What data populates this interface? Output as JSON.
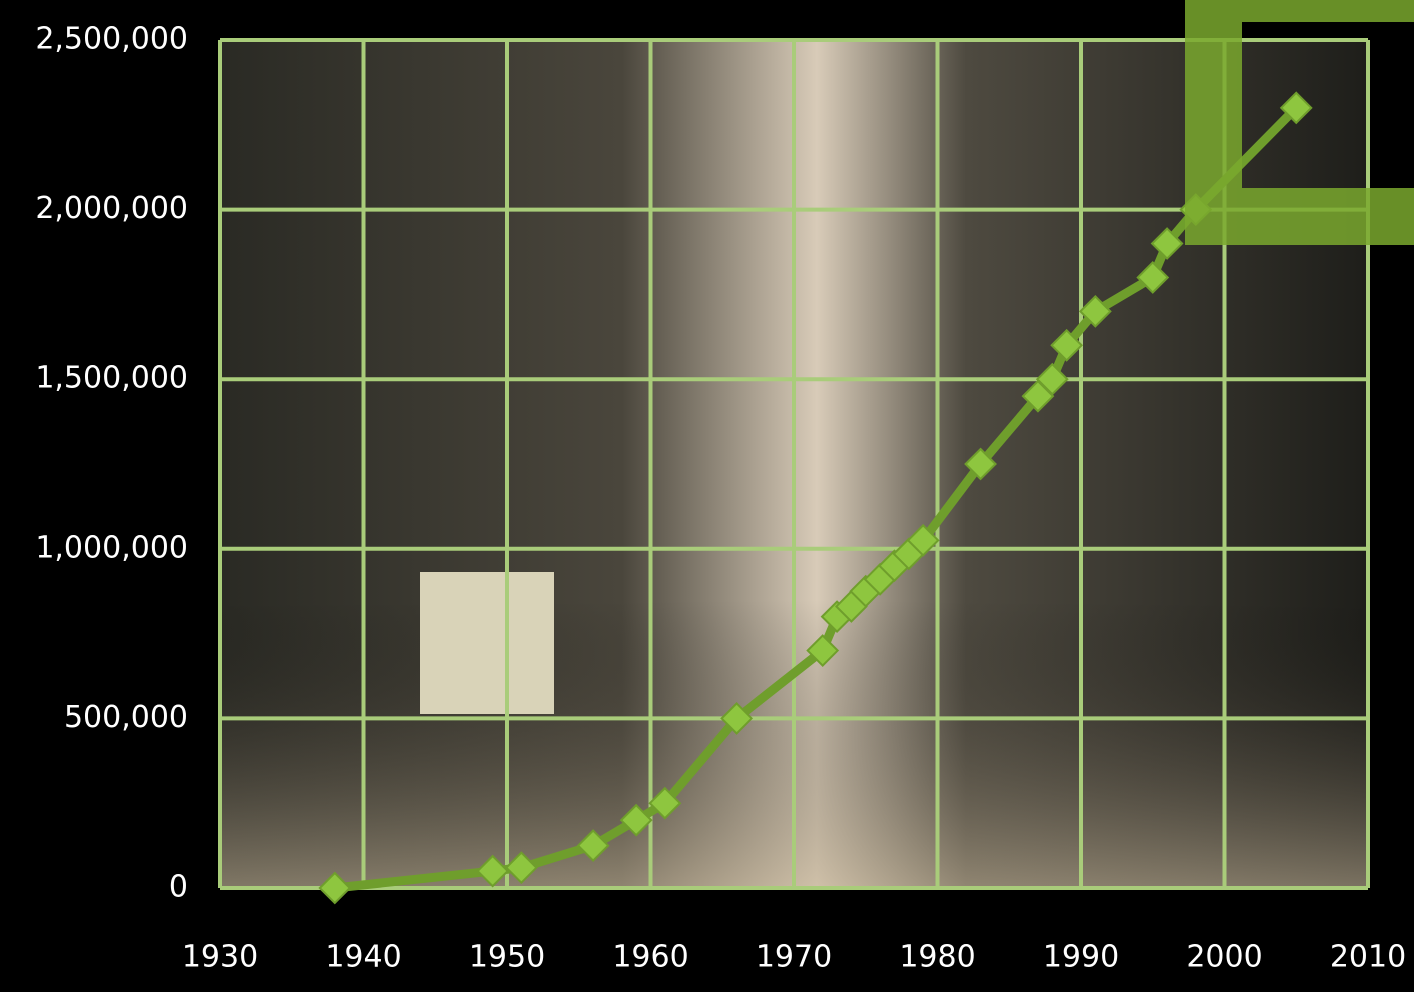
{
  "chart_data": {
    "type": "line",
    "x": [
      1938,
      1949,
      1951,
      1956,
      1959,
      1961,
      1966,
      1972,
      1973,
      1974,
      1975,
      1976,
      1977,
      1978,
      1979,
      1983,
      1987,
      1988,
      1989,
      1991,
      1995,
      1996,
      1998,
      2005
    ],
    "values": [
      0,
      50000,
      60000,
      125000,
      200000,
      250000,
      500000,
      700000,
      800000,
      830000,
      875000,
      910000,
      950000,
      985000,
      1025000,
      1250000,
      1450000,
      1500000,
      1600000,
      1700000,
      1800000,
      1900000,
      2000000,
      2300000
    ],
    "color": "#6f9e2c",
    "marker_color": "#8ec63f",
    "xlim": [
      1930,
      2010
    ],
    "xticks": [
      1930,
      1940,
      1950,
      1960,
      1970,
      1980,
      1990,
      2000,
      2010
    ],
    "ylim": [
      0,
      2500000
    ],
    "yticks": [
      0,
      {
        "value": 500000,
        "label": "500,000"
      },
      {
        "value": 1000000,
        "label": "1,000,000"
      },
      {
        "value": 1500000,
        "label": "1,500,000"
      },
      {
        "value": 2000000,
        "label": "2,000,000"
      },
      {
        "value": 2500000,
        "label": "2,500,000"
      }
    ],
    "grid": true
  }
}
